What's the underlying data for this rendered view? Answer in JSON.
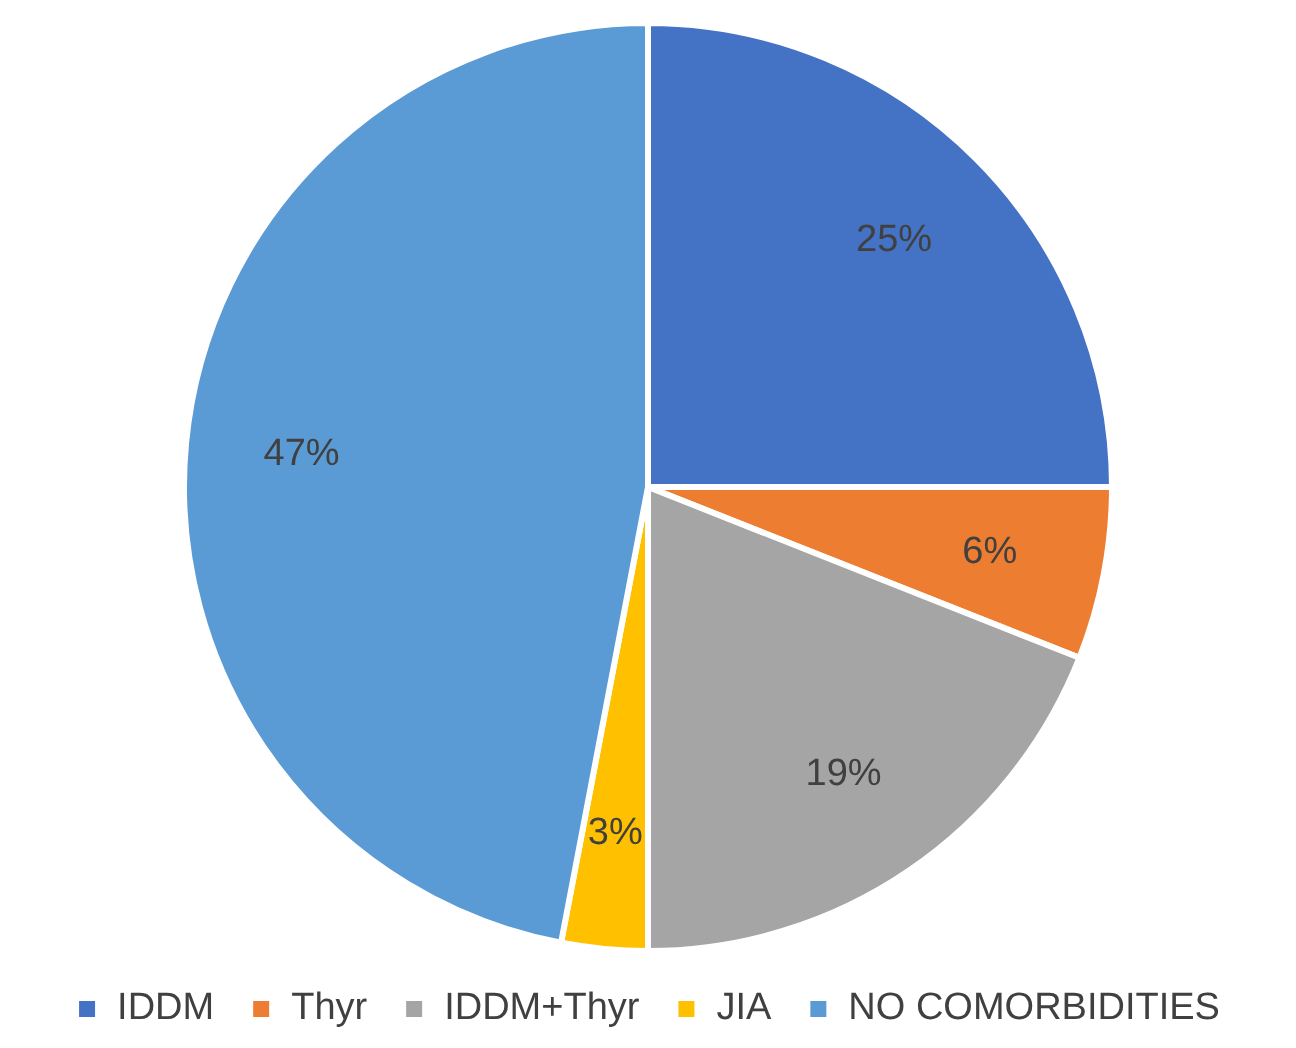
{
  "chart_data": {
    "type": "pie",
    "categories": [
      "IDDM",
      "Thyr",
      "IDDM+Thyr",
      "JIA",
      "NO COMORBIDITIES"
    ],
    "values": [
      25,
      6,
      19,
      3,
      47
    ],
    "colors": [
      "#4472c4",
      "#ed7d31",
      "#a5a5a5",
      "#ffc000",
      "#5b9bd5"
    ],
    "value_labels": [
      "25%",
      "6%",
      "19%",
      "3%",
      "47%"
    ],
    "legend": "bottom"
  }
}
